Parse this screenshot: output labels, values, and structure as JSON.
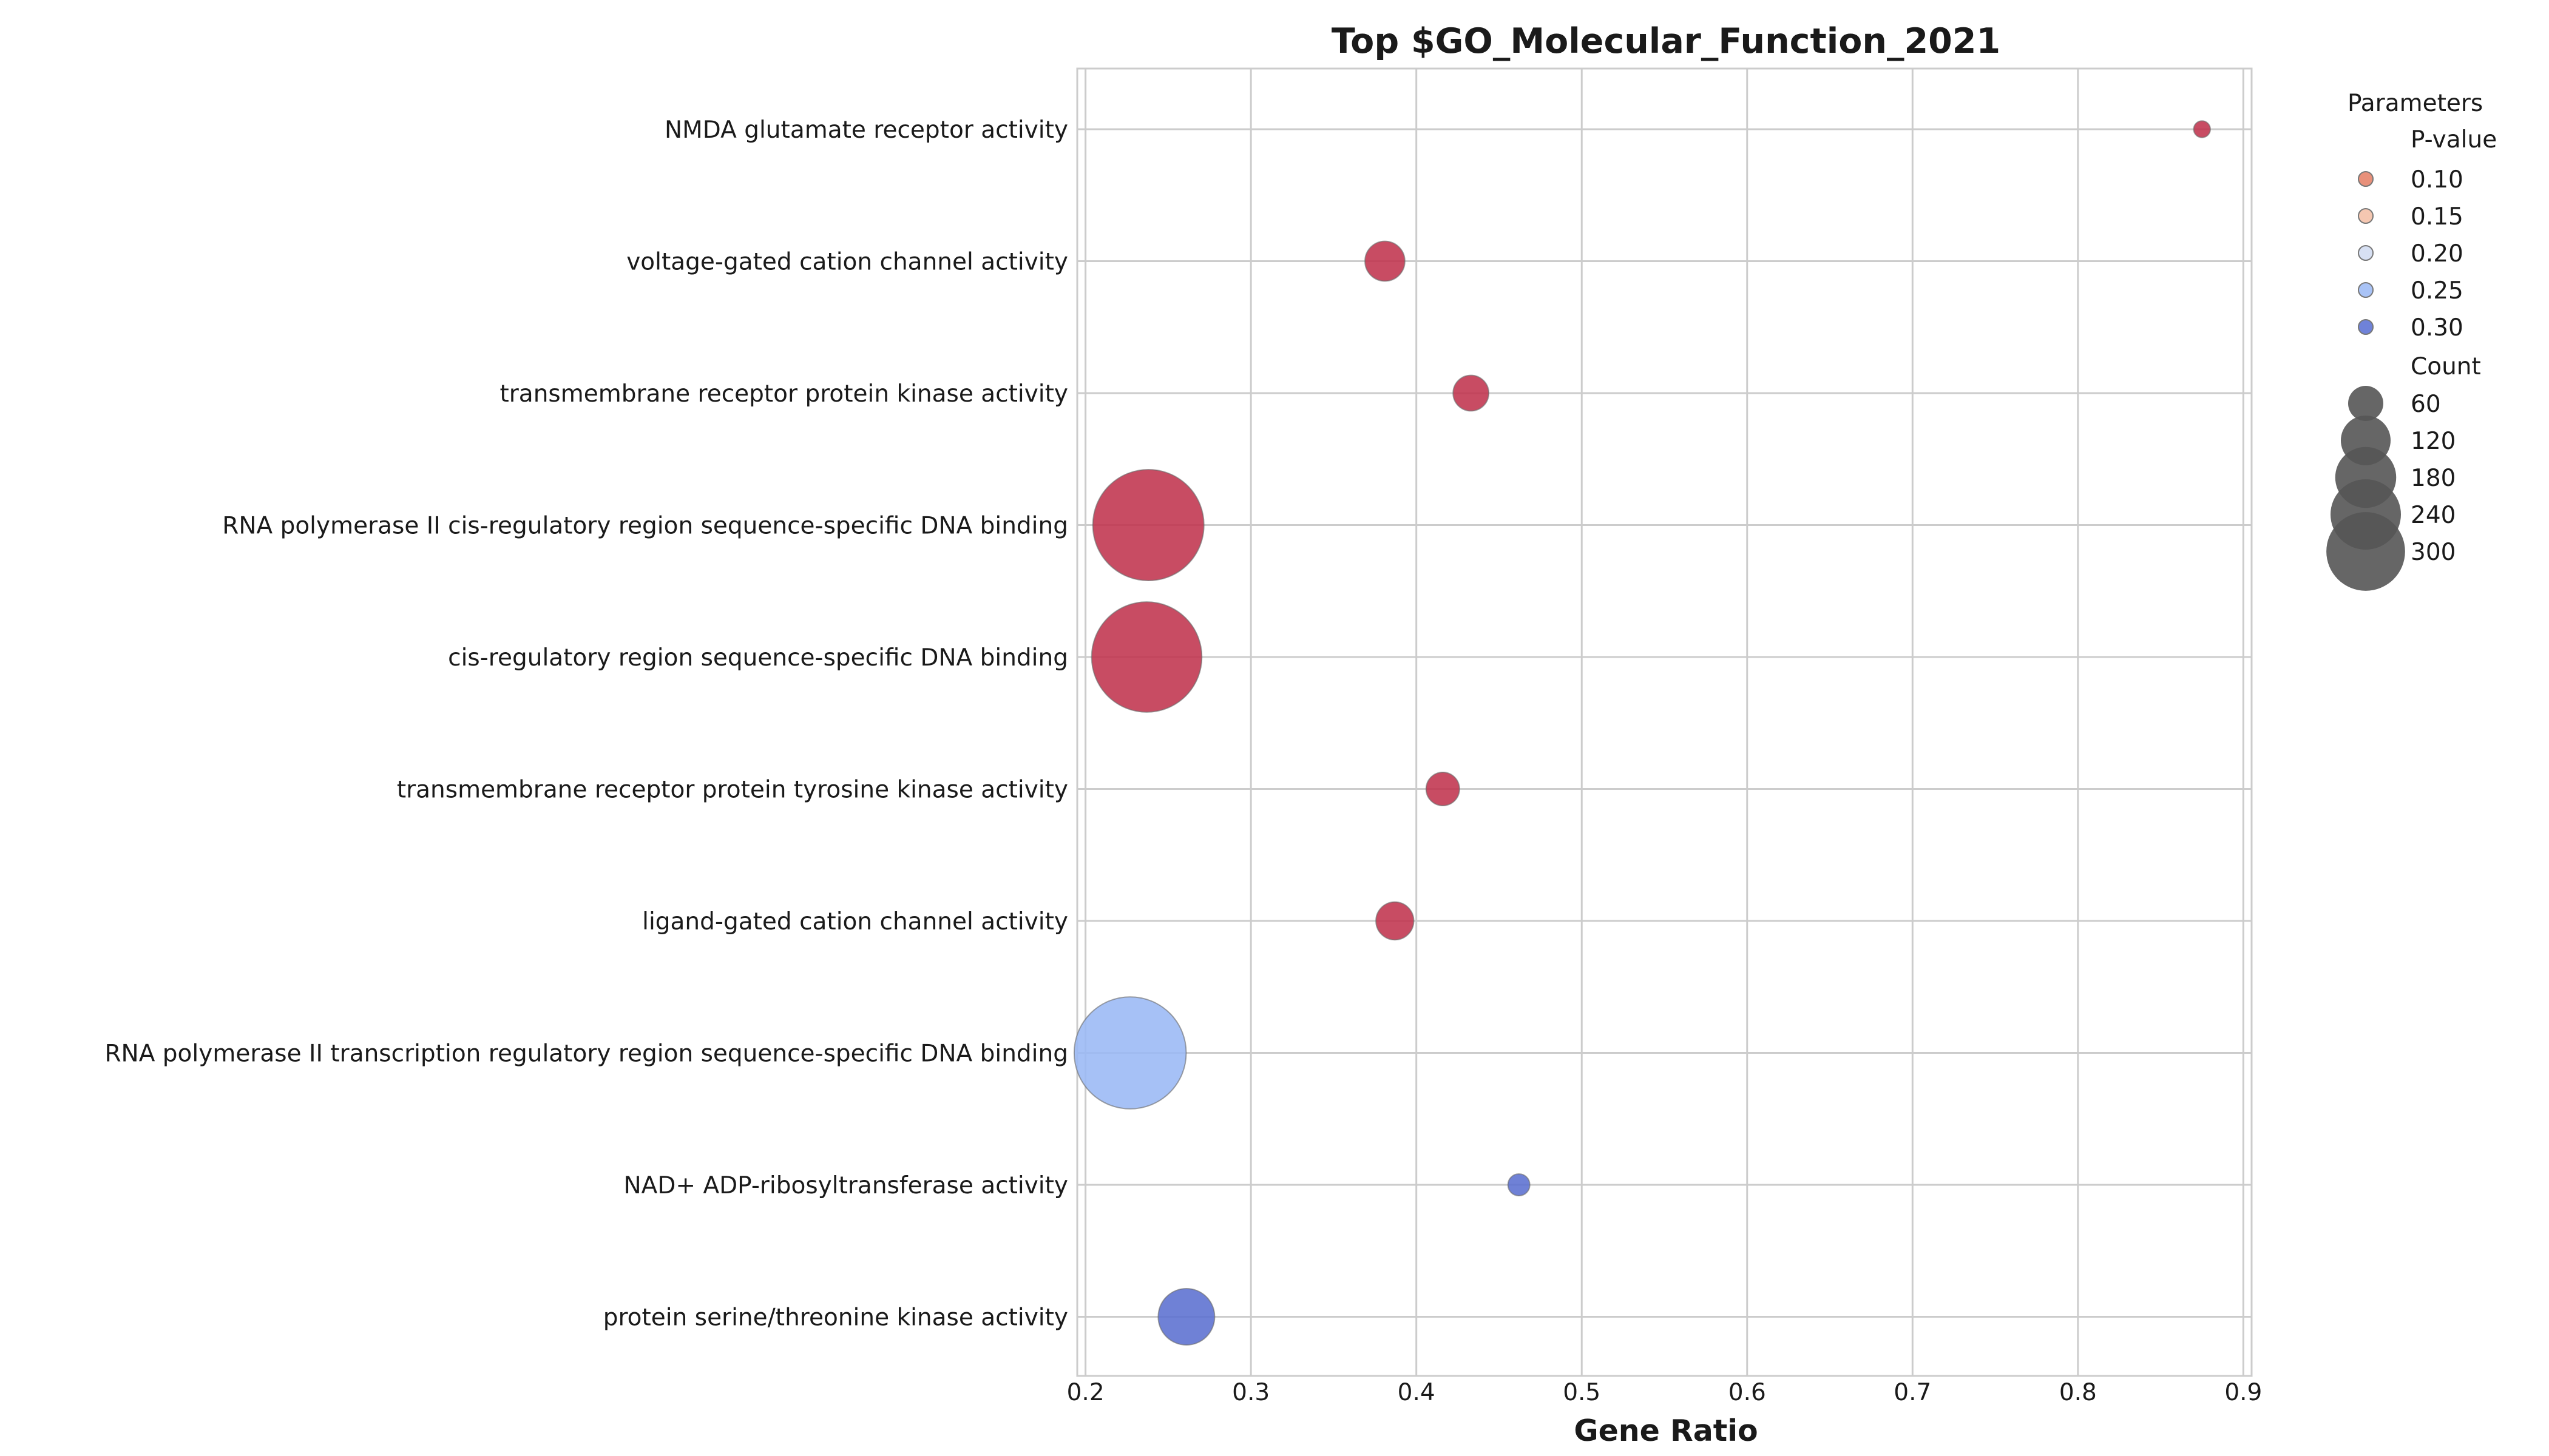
{
  "chart_data": {
    "type": "scatter",
    "title": "Top $GO_Molecular_Function_2021",
    "xlabel": "Gene Ratio",
    "ylabel": "",
    "xlim": [
      0.195,
      0.905
    ],
    "xticks": [
      "0.2",
      "0.3",
      "0.4",
      "0.5",
      "0.6",
      "0.7",
      "0.8",
      "0.9"
    ],
    "grid": true,
    "categories": [
      "NMDA glutamate receptor activity",
      "voltage-gated cation channel activity",
      "transmembrane receptor protein kinase activity",
      "RNA polymerase II cis-regulatory region sequence-specific DNA binding",
      "cis-regulatory region sequence-specific DNA binding",
      "transmembrane receptor protein tyrosine kinase activity",
      "ligand-gated cation channel activity",
      "RNA polymerase II transcription regulatory region sequence-specific DNA binding",
      "NAD+ ADP-ribosyltransferase activity",
      "protein serine/threonine kinase activity"
    ],
    "points": [
      {
        "category": "NMDA glutamate receptor activity",
        "gene_ratio": 0.875,
        "count": 7,
        "p_value": 0.03
      },
      {
        "category": "voltage-gated cation channel activity",
        "gene_ratio": 0.381,
        "count": 40,
        "p_value": 0.04
      },
      {
        "category": "transmembrane receptor protein kinase activity",
        "gene_ratio": 0.433,
        "count": 32,
        "p_value": 0.04
      },
      {
        "category": "RNA polymerase II cis-regulatory region sequence-specific DNA binding",
        "gene_ratio": 0.238,
        "count": 310,
        "p_value": 0.04
      },
      {
        "category": "cis-regulatory region sequence-specific DNA binding",
        "gene_ratio": 0.237,
        "count": 305,
        "p_value": 0.04
      },
      {
        "category": "transmembrane receptor protein tyrosine kinase activity",
        "gene_ratio": 0.416,
        "count": 28,
        "p_value": 0.04
      },
      {
        "category": "ligand-gated cation channel activity",
        "gene_ratio": 0.387,
        "count": 36,
        "p_value": 0.04
      },
      {
        "category": "RNA polymerase II transcription regulatory region sequence-specific DNA binding",
        "gene_ratio": 0.227,
        "count": 315,
        "p_value": 0.26
      },
      {
        "category": "NAD+ ADP-ribosyltransferase activity",
        "gene_ratio": 0.462,
        "count": 12,
        "p_value": 0.31
      },
      {
        "category": "protein serine/threonine kinase activity",
        "gene_ratio": 0.261,
        "count": 80,
        "p_value": 0.31
      }
    ],
    "legend": {
      "title": "Parameters",
      "placement": "outside-right",
      "pvalue_title": "P-value",
      "pvalue_entries": [
        {
          "label": "0.10",
          "color": "#e8907a"
        },
        {
          "label": "0.15",
          "color": "#f5c7b1"
        },
        {
          "label": "0.20",
          "color": "#d7e0f3"
        },
        {
          "label": "0.25",
          "color": "#a9c3f6"
        },
        {
          "label": "0.30",
          "color": "#6f82d9"
        }
      ],
      "count_title": "Count",
      "count_entries": [
        {
          "label": "60",
          "value": 60
        },
        {
          "label": "120",
          "value": 120
        },
        {
          "label": "180",
          "value": 180
        },
        {
          "label": "240",
          "value": 240
        },
        {
          "label": "300",
          "value": 300
        }
      ]
    },
    "colors": {
      "low_p": "#c0334d",
      "high_p": "#5b70d0",
      "mid_p": "#9ab8f5",
      "legend_marker": "#555555"
    }
  }
}
